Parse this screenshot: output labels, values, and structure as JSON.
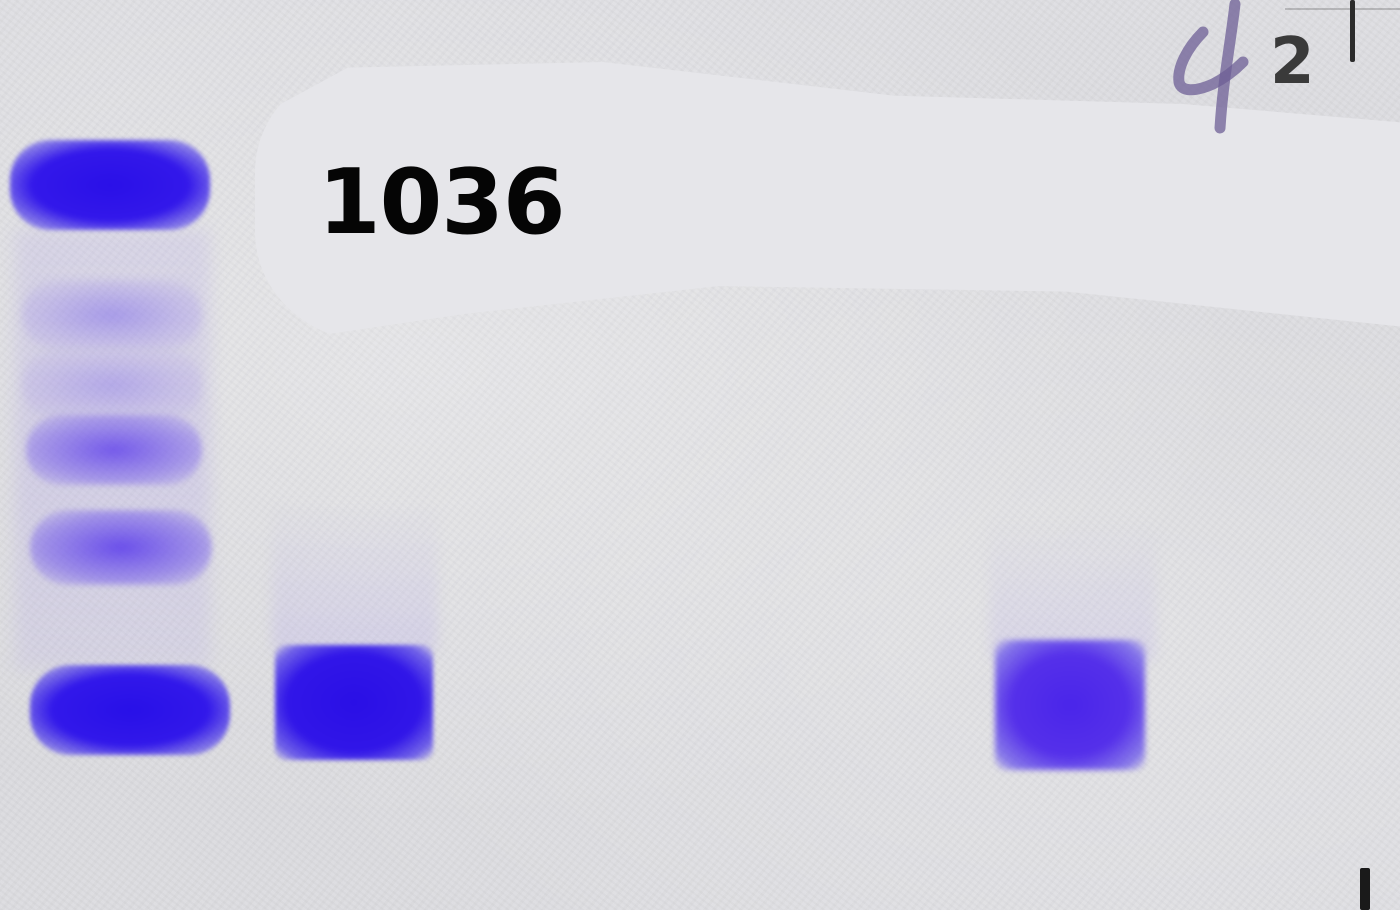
{
  "gel": {
    "sample_label": "1036",
    "corner_mark": "2",
    "stain_colors": {
      "band_dark": "#2a10e8",
      "band_medium": "#5530ea",
      "band_faint": "#8c78eb",
      "background": "#dcdce0",
      "redaction": "#e6e6ea"
    },
    "lanes": [
      {
        "name": "ladder",
        "bands": [
          "top-strong",
          "faint",
          "faint",
          "medium",
          "medium",
          "bottom-strong"
        ]
      },
      {
        "name": "sample-lane-2",
        "bands": [
          "strong"
        ]
      },
      {
        "name": "sample-lane-right",
        "bands": [
          "strong"
        ]
      }
    ],
    "icons": {
      "handwritten_mark": "handwritten-four-icon",
      "edge_tick": "tick-mark-icon"
    }
  }
}
